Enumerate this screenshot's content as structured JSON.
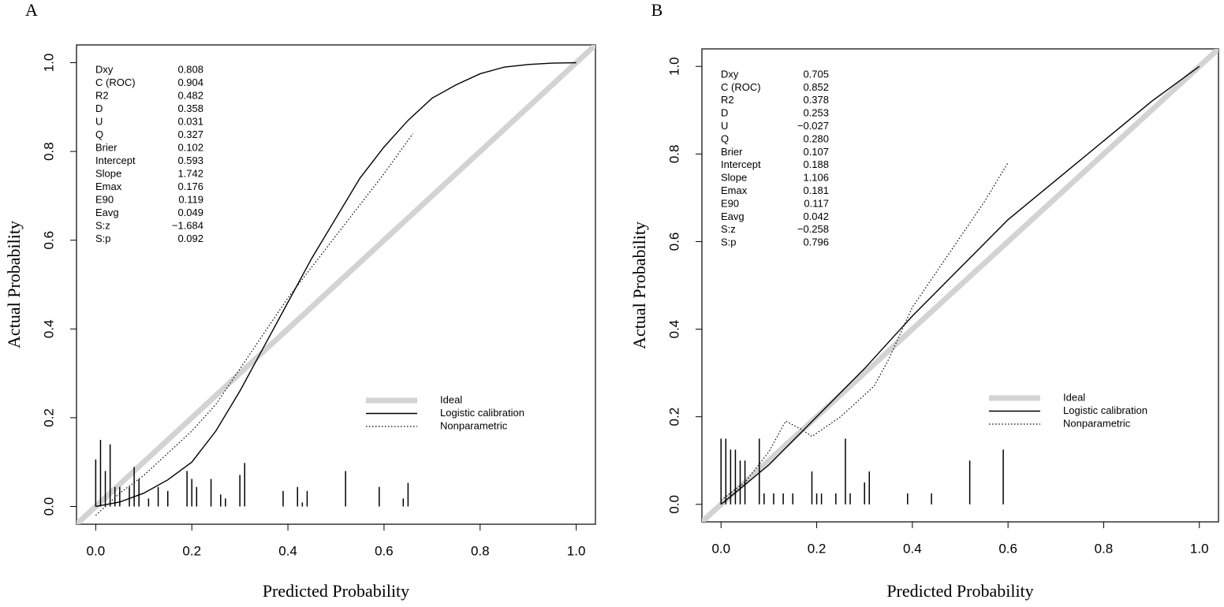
{
  "chart_data": [
    {
      "type": "calibration",
      "title": "A",
      "x_label": "Predicted Probability",
      "y_label": "Actual Probability",
      "xlim": [
        -0.04,
        1.04
      ],
      "ylim": [
        -0.04,
        1.04
      ],
      "xticks": [
        {
          "value": 0,
          "label": "0.0"
        },
        0.2,
        0.4,
        0.6,
        0.8,
        {
          "value": 1,
          "label": "1.0"
        }
      ],
      "yticks": [
        {
          "value": 0,
          "label": "0.0"
        },
        0.2,
        0.4,
        0.6,
        0.8,
        {
          "value": 1,
          "label": "1.0"
        }
      ],
      "legend": "bottom-right",
      "stats": {
        "names": [
          "Dxy",
          "C (ROC)",
          "R2",
          "D",
          "U",
          "Q",
          "Brier",
          "Intercept",
          "Slope",
          "Emax",
          "E90",
          "Eavg",
          "S:z",
          "S:p"
        ],
        "values": [
          "0.808",
          "0.904",
          "0.482",
          "0.358",
          "0.031",
          "0.327",
          "0.102",
          "0.593",
          "1.742",
          "0.176",
          "0.119",
          "0.049",
          "−1.684",
          "0.092"
        ]
      },
      "series": [
        {
          "name": "Ideal",
          "color": "#d3d3d3",
          "x": [
            -0.04,
            1.04
          ],
          "values": [
            -0.04,
            1.04
          ]
        },
        {
          "name": "Logistic calibration",
          "color": "#000000",
          "x": [
            0,
            0.05,
            0.1,
            0.15,
            0.2,
            0.25,
            0.3,
            0.35,
            0.4,
            0.45,
            0.5,
            0.55,
            0.6,
            0.65,
            0.7,
            0.75,
            0.8,
            0.85,
            0.9,
            0.95,
            1
          ],
          "values": [
            0,
            0.01,
            0.03,
            0.06,
            0.1,
            0.17,
            0.26,
            0.36,
            0.46,
            0.56,
            0.65,
            0.74,
            0.81,
            0.87,
            0.92,
            0.95,
            0.975,
            0.99,
            0.996,
            0.999,
            1
          ]
        },
        {
          "name": "Nonparametric",
          "color": "#000000",
          "x": [
            0,
            0.05,
            0.1,
            0.15,
            0.2,
            0.25,
            0.3,
            0.35,
            0.4,
            0.45,
            0.5,
            0.55,
            0.6,
            0.66
          ],
          "values": [
            -0.02,
            0.03,
            0.07,
            0.12,
            0.17,
            0.23,
            0.31,
            0.39,
            0.47,
            0.54,
            0.61,
            0.68,
            0.75,
            0.84
          ]
        }
      ],
      "rug": {
        "color": "#000000",
        "x": [
          0,
          0.01,
          0.02,
          0.03,
          0.04,
          0.05,
          0.07,
          0.08,
          0.09,
          0.11,
          0.13,
          0.15,
          0.19,
          0.2,
          0.21,
          0.24,
          0.26,
          0.27,
          0.3,
          0.31,
          0.39,
          0.42,
          0.43,
          0.44,
          0.52,
          0.59,
          0.64,
          0.65
        ],
        "values": [
          0.106,
          0.15,
          0.08,
          0.14,
          0.044,
          0.044,
          0.044,
          0.089,
          0.062,
          0.018,
          0.044,
          0.035,
          0.08,
          0.062,
          0.044,
          0.062,
          0.027,
          0.018,
          0.071,
          0.098,
          0.035,
          0.044,
          0.009,
          0.035,
          0.08,
          0.044,
          0.018,
          0.053
        ]
      }
    },
    {
      "type": "calibration",
      "title": "B",
      "x_label": "Predicted Probability",
      "y_label": "Actual Probability",
      "xlim": [
        -0.04,
        1.04
      ],
      "ylim": [
        -0.04,
        1.04
      ],
      "xticks": [
        {
          "value": 0,
          "label": "0.0"
        },
        0.2,
        0.4,
        0.6,
        0.8,
        {
          "value": 1,
          "label": "1.0"
        }
      ],
      "yticks": [
        {
          "value": 0,
          "label": "0.0"
        },
        0.2,
        0.4,
        0.6,
        0.8,
        {
          "value": 1,
          "label": "1.0"
        }
      ],
      "legend": "bottom-right",
      "stats": {
        "names": [
          "Dxy",
          "C (ROC)",
          "R2",
          "D",
          "U",
          "Q",
          "Brier",
          "Intercept",
          "Slope",
          "Emax",
          "E90",
          "Eavg",
          "S:z",
          "S:p"
        ],
        "values": [
          "0.705",
          "0.852",
          "0.378",
          "0.253",
          "−0.027",
          "0.280",
          "0.107",
          "0.188",
          "1.106",
          "0.181",
          "0.117",
          "0.042",
          "−0.258",
          "0.796"
        ]
      },
      "series": [
        {
          "name": "Ideal",
          "color": "#d3d3d3",
          "x": [
            -0.04,
            1.04
          ],
          "values": [
            -0.04,
            1.04
          ]
        },
        {
          "name": "Logistic calibration",
          "color": "#000000",
          "x": [
            0,
            0.1,
            0.2,
            0.3,
            0.4,
            0.5,
            0.6,
            0.7,
            0.8,
            0.9,
            1
          ],
          "values": [
            0,
            0.09,
            0.2,
            0.31,
            0.43,
            0.54,
            0.65,
            0.74,
            0.83,
            0.92,
            1
          ]
        },
        {
          "name": "Nonparametric",
          "color": "#000000",
          "x": [
            0,
            0.05,
            0.1,
            0.135,
            0.17,
            0.19,
            0.25,
            0.3,
            0.32,
            0.35,
            0.4,
            0.45,
            0.5,
            0.55,
            0.6
          ],
          "values": [
            0.01,
            0.05,
            0.12,
            0.19,
            0.17,
            0.155,
            0.2,
            0.25,
            0.27,
            0.33,
            0.45,
            0.53,
            0.61,
            0.69,
            0.78
          ]
        }
      ],
      "rug": {
        "color": "#000000",
        "x": [
          0,
          0.01,
          0.02,
          0.03,
          0.04,
          0.05,
          0.08,
          0.09,
          0.11,
          0.13,
          0.15,
          0.19,
          0.2,
          0.21,
          0.24,
          0.26,
          0.27,
          0.3,
          0.31,
          0.39,
          0.44,
          0.52,
          0.59
        ],
        "values": [
          0.15,
          0.15,
          0.125,
          0.125,
          0.1,
          0.1,
          0.15,
          0.025,
          0.025,
          0.025,
          0.025,
          0.075,
          0.025,
          0.025,
          0.025,
          0.15,
          0.025,
          0.05,
          0.075,
          0.025,
          0.025,
          0.1,
          0.125
        ]
      }
    }
  ]
}
